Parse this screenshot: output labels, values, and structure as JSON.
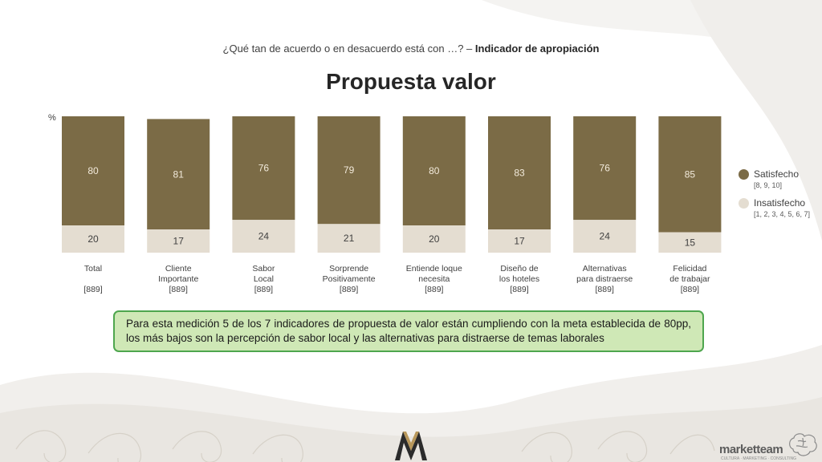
{
  "header": {
    "subtitle_prefix": "¿Qué tan de acuerdo o en desacuerdo está con …? – ",
    "subtitle_bold": "Indicador de apropiación",
    "title": "Propuesta valor"
  },
  "chart_data": {
    "type": "bar",
    "stacked": true,
    "ylabel": "%",
    "ylim": [
      0,
      100
    ],
    "categories": [
      {
        "lines": [
          "Total",
          "",
          "[889]"
        ]
      },
      {
        "lines": [
          "Cliente",
          "Importante",
          "[889]"
        ]
      },
      {
        "lines": [
          "Sabor",
          "Local",
          "[889]"
        ]
      },
      {
        "lines": [
          "Sorprende",
          "Positivamente",
          "[889]"
        ]
      },
      {
        "lines": [
          "Entiende loque",
          "necesita",
          "[889]"
        ]
      },
      {
        "lines": [
          "Diseño de",
          "los hoteles",
          "[889]"
        ]
      },
      {
        "lines": [
          "Alternativas",
          "para distraerse",
          "[889]"
        ]
      },
      {
        "lines": [
          "Felicidad",
          "de trabajar",
          "[889]"
        ]
      }
    ],
    "series": [
      {
        "name": "Satisfecho",
        "sub": "[8, 9, 10]",
        "color": "#7b6b46",
        "label_color": "#f2eadb",
        "values": [
          80,
          81,
          76,
          79,
          80,
          83,
          76,
          85
        ]
      },
      {
        "name": "Insatisfecho",
        "sub": "[1, 2, 3, 4, 5, 6, 7]",
        "color": "#e4ddd1",
        "label_color": "#404040",
        "values": [
          20,
          17,
          24,
          21,
          20,
          17,
          24,
          15
        ]
      }
    ]
  },
  "note": {
    "text": "Para esta medición 5 de los 7 indicadores de propuesta de valor están cumpliendo con la meta establecida de 80pp, los más bajos son la percepción de sabor local y las alternativas para distraerse de temas laborales"
  },
  "footer": {
    "brand": "marketteam",
    "tagline": "CULTURA · MARKETING · CONSULTING"
  }
}
